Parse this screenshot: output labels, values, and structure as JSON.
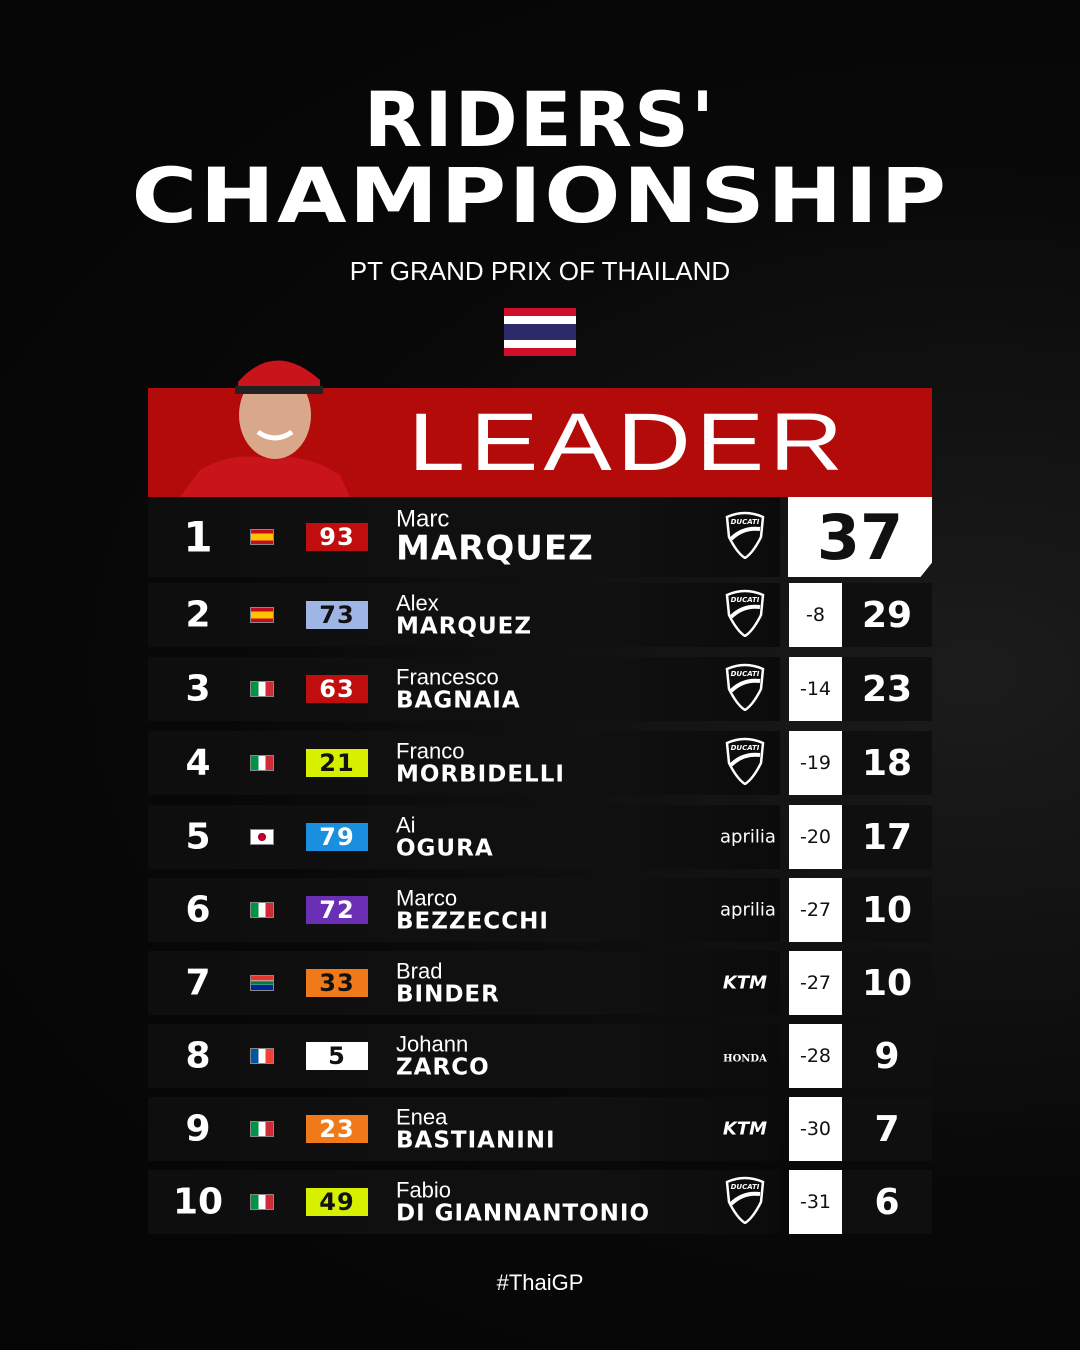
{
  "header": {
    "title_line1": "RIDERS'",
    "title_line2": "CHAMPIONSHIP",
    "subtitle": "PT GRAND PRIX OF THAILAND",
    "event_flag": "thailand"
  },
  "leader": {
    "label": "LEADER",
    "points": "37"
  },
  "standings": [
    {
      "pos": "1",
      "flag": "spain",
      "number": "93",
      "plate_bg": "#c00d0d",
      "plate_fg": "#ffffff",
      "first": "Marc",
      "last": "MARQUEZ",
      "manufacturer": "DUCATI",
      "gap": "",
      "points": "37"
    },
    {
      "pos": "2",
      "flag": "spain",
      "number": "73",
      "plate_bg": "#9fb5e6",
      "plate_fg": "#111111",
      "first": "Alex",
      "last": "MARQUEZ",
      "manufacturer": "DUCATI",
      "gap": "-8",
      "points": "29"
    },
    {
      "pos": "3",
      "flag": "italy",
      "number": "63",
      "plate_bg": "#c00d0d",
      "plate_fg": "#ffffff",
      "first": "Francesco",
      "last": "BAGNAIA",
      "manufacturer": "DUCATI",
      "gap": "-14",
      "points": "23"
    },
    {
      "pos": "4",
      "flag": "italy",
      "number": "21",
      "plate_bg": "#d6f000",
      "plate_fg": "#111111",
      "first": "Franco",
      "last": "MORBIDELLI",
      "manufacturer": "DUCATI",
      "gap": "-19",
      "points": "18"
    },
    {
      "pos": "5",
      "flag": "japan",
      "number": "79",
      "plate_bg": "#1a8fe0",
      "plate_fg": "#ffffff",
      "first": "Ai",
      "last": "OGURA",
      "manufacturer": "aprilia",
      "gap": "-20",
      "points": "17"
    },
    {
      "pos": "6",
      "flag": "italy",
      "number": "72",
      "plate_bg": "#6a2fb5",
      "plate_fg": "#ffffff",
      "first": "Marco",
      "last": "BEZZECCHI",
      "manufacturer": "aprilia",
      "gap": "-27",
      "points": "10"
    },
    {
      "pos": "7",
      "flag": "south-africa",
      "number": "33",
      "plate_bg": "#f07a1a",
      "plate_fg": "#111111",
      "first": "Brad",
      "last": "BINDER",
      "manufacturer": "KTM",
      "gap": "-27",
      "points": "10"
    },
    {
      "pos": "8",
      "flag": "france",
      "number": "5",
      "plate_bg": "#ffffff",
      "plate_fg": "#111111",
      "first": "Johann",
      "last": "ZARCO",
      "manufacturer": "HONDA",
      "gap": "-28",
      "points": "9"
    },
    {
      "pos": "9",
      "flag": "italy",
      "number": "23",
      "plate_bg": "#f07a1a",
      "plate_fg": "#ffffff",
      "first": "Enea",
      "last": "BASTIANINI",
      "manufacturer": "KTM",
      "gap": "-30",
      "points": "7"
    },
    {
      "pos": "10",
      "flag": "italy",
      "number": "49",
      "plate_bg": "#d6f000",
      "plate_fg": "#111111",
      "first": "Fabio",
      "last": "DI GIANNANTONIO",
      "manufacturer": "DUCATI",
      "gap": "-31",
      "points": "6"
    }
  ],
  "footer": {
    "hashtag": "#ThaiGP"
  }
}
